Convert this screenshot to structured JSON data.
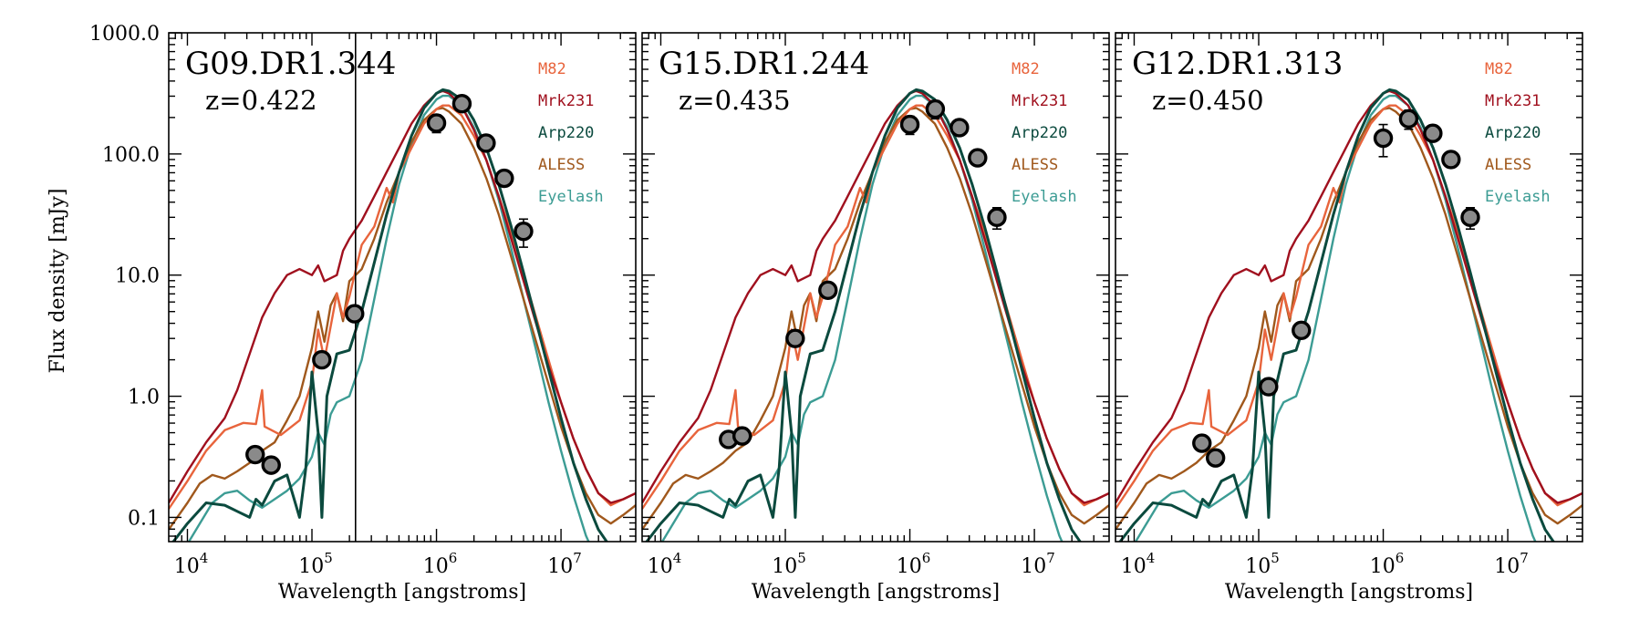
{
  "chart_data": {
    "type": "line",
    "ylabel": "Flux density [mJy]",
    "xlabel": "Wavelength [angstroms]",
    "xlim_log10": [
      3.85,
      7.6
    ],
    "ylim_log10": [
      -1.2,
      3.0
    ],
    "xscale": "log",
    "yscale": "log",
    "x_tick_labels": [
      "10^4",
      "10^5",
      "10^6",
      "10^7"
    ],
    "x_tick_exponents": [
      "4",
      "5",
      "6",
      "7"
    ],
    "y_tick_labels": [
      "1000.0",
      "100.0",
      "10.0",
      "1.0",
      "0.1"
    ],
    "y_tick_values": [
      1000,
      100,
      10,
      1,
      0.1
    ],
    "legend": [
      "M82",
      "Mrk231",
      "Arp220",
      "ALESS",
      "Eyelash"
    ],
    "colors": {
      "M82": "#e8643c",
      "Mrk231": "#a0101e",
      "Arp220": "#0b4a3e",
      "ALESS": "#a0581c",
      "Eyelash": "#3c9c94",
      "points": "#8a8a8a"
    },
    "panels": [
      {
        "name": "G09.DR1.344",
        "redshift": "z=0.422",
        "vline_log10_lambda": 5.35,
        "points": [
          {
            "x": 35000,
            "y": 0.33
          },
          {
            "x": 47000,
            "y": 0.27
          },
          {
            "x": 120000,
            "y": 2.0
          },
          {
            "x": 220000,
            "y": 4.8
          },
          {
            "x": 1000000,
            "y": 180,
            "err": 30
          },
          {
            "x": 1600000,
            "y": 260
          },
          {
            "x": 2500000,
            "y": 123
          },
          {
            "x": 3500000,
            "y": 63
          },
          {
            "x": 5000000,
            "y": 23,
            "err": 6
          }
        ]
      },
      {
        "name": "G15.DR1.244",
        "redshift": "z=0.435",
        "vline_log10_lambda": null,
        "points": [
          {
            "x": 35000,
            "y": 0.44
          },
          {
            "x": 45000,
            "y": 0.47
          },
          {
            "x": 120000,
            "y": 3.0
          },
          {
            "x": 220000,
            "y": 7.5
          },
          {
            "x": 1000000,
            "y": 175,
            "err": 30
          },
          {
            "x": 1600000,
            "y": 235,
            "err": 40
          },
          {
            "x": 2500000,
            "y": 165
          },
          {
            "x": 3500000,
            "y": 93
          },
          {
            "x": 5000000,
            "y": 30,
            "err": 6
          }
        ]
      },
      {
        "name": "G12.DR1.313",
        "redshift": "z=0.450",
        "vline_log10_lambda": null,
        "points": [
          {
            "x": 35000,
            "y": 0.41
          },
          {
            "x": 45000,
            "y": 0.31
          },
          {
            "x": 120000,
            "y": 1.2
          },
          {
            "x": 220000,
            "y": 3.5
          },
          {
            "x": 1000000,
            "y": 135,
            "err": 40
          },
          {
            "x": 1600000,
            "y": 195,
            "err": 35
          },
          {
            "x": 2500000,
            "y": 148
          },
          {
            "x": 3500000,
            "y": 90
          },
          {
            "x": 5000000,
            "y": 30,
            "err": 6
          }
        ]
      }
    ],
    "templates": {
      "M82": [
        [
          3.85,
          -0.93
        ],
        [
          4.0,
          -0.7
        ],
        [
          4.15,
          -0.45
        ],
        [
          4.3,
          -0.28
        ],
        [
          4.45,
          -0.22
        ],
        [
          4.55,
          -0.23
        ],
        [
          4.6,
          0.05
        ],
        [
          4.62,
          -0.25
        ],
        [
          4.75,
          -0.32
        ],
        [
          4.9,
          -0.2
        ],
        [
          5.0,
          0.12
        ],
        [
          5.05,
          0.55
        ],
        [
          5.1,
          0.3
        ],
        [
          5.2,
          0.85
        ],
        [
          5.25,
          0.65
        ],
        [
          5.3,
          0.82
        ],
        [
          5.4,
          1.25
        ],
        [
          5.5,
          1.4
        ],
        [
          5.6,
          1.72
        ],
        [
          5.65,
          1.6
        ],
        [
          5.7,
          1.85
        ],
        [
          5.8,
          2.05
        ],
        [
          5.9,
          2.25
        ],
        [
          6.0,
          2.37
        ],
        [
          6.05,
          2.4
        ],
        [
          6.1,
          2.4
        ],
        [
          6.2,
          2.32
        ],
        [
          6.3,
          2.15
        ],
        [
          6.4,
          1.95
        ],
        [
          6.5,
          1.65
        ],
        [
          6.6,
          1.35
        ],
        [
          6.7,
          1.0
        ],
        [
          6.8,
          0.65
        ],
        [
          6.9,
          0.3
        ],
        [
          7.0,
          -0.05
        ],
        [
          7.1,
          -0.35
        ],
        [
          7.2,
          -0.6
        ],
        [
          7.3,
          -0.8
        ],
        [
          7.4,
          -0.9
        ],
        [
          7.5,
          -0.85
        ],
        [
          7.6,
          -0.8
        ]
      ],
      "Mrk231": [
        [
          3.85,
          -0.88
        ],
        [
          4.0,
          -0.62
        ],
        [
          4.15,
          -0.38
        ],
        [
          4.3,
          -0.18
        ],
        [
          4.4,
          0.05
        ],
        [
          4.5,
          0.35
        ],
        [
          4.6,
          0.65
        ],
        [
          4.7,
          0.85
        ],
        [
          4.8,
          1.0
        ],
        [
          4.9,
          1.05
        ],
        [
          5.0,
          1.0
        ],
        [
          5.05,
          1.08
        ],
        [
          5.1,
          0.95
        ],
        [
          5.2,
          1.0
        ],
        [
          5.25,
          1.2
        ],
        [
          5.3,
          1.3
        ],
        [
          5.4,
          1.45
        ],
        [
          5.5,
          1.65
        ],
        [
          5.6,
          1.85
        ],
        [
          5.7,
          2.05
        ],
        [
          5.8,
          2.25
        ],
        [
          5.9,
          2.4
        ],
        [
          6.0,
          2.5
        ],
        [
          6.05,
          2.52
        ],
        [
          6.1,
          2.5
        ],
        [
          6.2,
          2.4
        ],
        [
          6.3,
          2.2
        ],
        [
          6.4,
          1.95
        ],
        [
          6.5,
          1.65
        ],
        [
          6.6,
          1.3
        ],
        [
          6.7,
          0.95
        ],
        [
          6.8,
          0.6
        ],
        [
          6.9,
          0.25
        ],
        [
          7.0,
          -0.05
        ],
        [
          7.1,
          -0.35
        ],
        [
          7.2,
          -0.6
        ],
        [
          7.3,
          -0.8
        ],
        [
          7.4,
          -0.88
        ],
        [
          7.5,
          -0.85
        ],
        [
          7.6,
          -0.8
        ]
      ],
      "Arp220": [
        [
          3.85,
          -1.25
        ],
        [
          4.0,
          -1.05
        ],
        [
          4.15,
          -0.88
        ],
        [
          4.3,
          -0.9
        ],
        [
          4.4,
          -0.95
        ],
        [
          4.5,
          -1.0
        ],
        [
          4.55,
          -0.85
        ],
        [
          4.6,
          -0.9
        ],
        [
          4.7,
          -0.7
        ],
        [
          4.8,
          -0.65
        ],
        [
          4.9,
          -1.0
        ],
        [
          4.95,
          -0.6
        ],
        [
          5.0,
          0.2
        ],
        [
          5.05,
          -0.3
        ],
        [
          5.08,
          -1.0
        ],
        [
          5.12,
          0.0
        ],
        [
          5.2,
          0.35
        ],
        [
          5.3,
          0.38
        ],
        [
          5.4,
          0.7
        ],
        [
          5.5,
          1.1
        ],
        [
          5.6,
          1.5
        ],
        [
          5.7,
          1.85
        ],
        [
          5.8,
          2.15
        ],
        [
          5.9,
          2.38
        ],
        [
          6.0,
          2.5
        ],
        [
          6.05,
          2.53
        ],
        [
          6.1,
          2.52
        ],
        [
          6.2,
          2.45
        ],
        [
          6.3,
          2.28
        ],
        [
          6.4,
          2.05
        ],
        [
          6.5,
          1.75
        ],
        [
          6.6,
          1.4
        ],
        [
          6.7,
          1.02
        ],
        [
          6.8,
          0.62
        ],
        [
          6.9,
          0.22
        ],
        [
          7.0,
          -0.18
        ],
        [
          7.1,
          -0.55
        ],
        [
          7.2,
          -0.85
        ],
        [
          7.3,
          -1.1
        ],
        [
          7.4,
          -1.25
        ]
      ],
      "ALESS": [
        [
          3.85,
          -1.1
        ],
        [
          4.0,
          -0.88
        ],
        [
          4.1,
          -0.72
        ],
        [
          4.2,
          -0.65
        ],
        [
          4.3,
          -0.68
        ],
        [
          4.4,
          -0.62
        ],
        [
          4.5,
          -0.55
        ],
        [
          4.6,
          -0.45
        ],
        [
          4.7,
          -0.38
        ],
        [
          4.8,
          -0.2
        ],
        [
          4.9,
          0.0
        ],
        [
          5.0,
          0.4
        ],
        [
          5.05,
          0.7
        ],
        [
          5.1,
          0.45
        ],
        [
          5.15,
          0.75
        ],
        [
          5.2,
          0.85
        ],
        [
          5.25,
          0.62
        ],
        [
          5.3,
          0.95
        ],
        [
          5.4,
          1.05
        ],
        [
          5.5,
          1.3
        ],
        [
          5.6,
          1.6
        ],
        [
          5.7,
          1.85
        ],
        [
          5.8,
          2.1
        ],
        [
          5.9,
          2.28
        ],
        [
          6.0,
          2.37
        ],
        [
          6.05,
          2.38
        ],
        [
          6.1,
          2.35
        ],
        [
          6.2,
          2.25
        ],
        [
          6.3,
          2.05
        ],
        [
          6.4,
          1.8
        ],
        [
          6.5,
          1.5
        ],
        [
          6.6,
          1.15
        ],
        [
          6.7,
          0.8
        ],
        [
          6.8,
          0.45
        ],
        [
          6.9,
          0.1
        ],
        [
          7.0,
          -0.25
        ],
        [
          7.1,
          -0.55
        ],
        [
          7.2,
          -0.8
        ],
        [
          7.3,
          -0.98
        ],
        [
          7.4,
          -1.05
        ],
        [
          7.5,
          -0.98
        ],
        [
          7.6,
          -0.9
        ]
      ],
      "Eyelash": [
        [
          3.85,
          -1.4
        ],
        [
          4.0,
          -1.22
        ],
        [
          4.1,
          -1.05
        ],
        [
          4.2,
          -0.88
        ],
        [
          4.3,
          -0.8
        ],
        [
          4.4,
          -0.78
        ],
        [
          4.5,
          -0.86
        ],
        [
          4.6,
          -0.92
        ],
        [
          4.7,
          -0.85
        ],
        [
          4.8,
          -0.78
        ],
        [
          4.9,
          -0.68
        ],
        [
          5.0,
          -0.5
        ],
        [
          5.05,
          -0.3
        ],
        [
          5.1,
          -0.4
        ],
        [
          5.15,
          -0.15
        ],
        [
          5.2,
          -0.05
        ],
        [
          5.3,
          0.0
        ],
        [
          5.4,
          0.3
        ],
        [
          5.5,
          0.8
        ],
        [
          5.6,
          1.3
        ],
        [
          5.7,
          1.75
        ],
        [
          5.8,
          2.08
        ],
        [
          5.9,
          2.32
        ],
        [
          6.0,
          2.45
        ],
        [
          6.05,
          2.48
        ],
        [
          6.1,
          2.48
        ],
        [
          6.2,
          2.4
        ],
        [
          6.3,
          2.22
        ],
        [
          6.4,
          1.95
        ],
        [
          6.5,
          1.62
        ],
        [
          6.6,
          1.22
        ],
        [
          6.7,
          0.8
        ],
        [
          6.8,
          0.38
        ],
        [
          6.9,
          -0.05
        ],
        [
          7.0,
          -0.45
        ],
        [
          7.1,
          -0.82
        ],
        [
          7.2,
          -1.15
        ],
        [
          7.3,
          -1.38
        ],
        [
          7.4,
          -1.5
        ]
      ]
    }
  }
}
